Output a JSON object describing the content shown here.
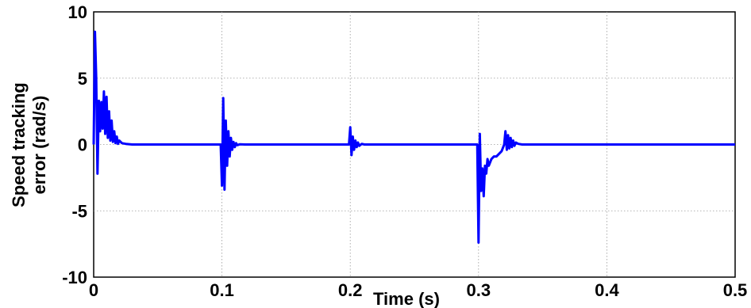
{
  "chart_data": {
    "type": "line",
    "xlabel": "Time (s)",
    "ylabel_lines": [
      "Speed tracking",
      "error (rad/s)"
    ],
    "xlim": [
      0,
      0.5
    ],
    "ylim": [
      -10,
      10
    ],
    "xticks": [
      0,
      0.1,
      0.2,
      0.3,
      0.4,
      0.5
    ],
    "xtick_labels": [
      "0",
      "0.1",
      "0.2",
      "0.3",
      "0.4",
      "0.5"
    ],
    "yticks": [
      -10,
      -5,
      0,
      5,
      10
    ],
    "ytick_labels": [
      "-10",
      "-5",
      "0",
      "5",
      "10"
    ],
    "grid": true,
    "line_color": "#0000ff",
    "series": [
      {
        "x": [
          0,
          0.001,
          0.002,
          0.003,
          0.004,
          0.005,
          0.006,
          0.007,
          0.008,
          0.009,
          0.01,
          0.011,
          0.012,
          0.013,
          0.014,
          0.015,
          0.016,
          0.017,
          0.018,
          0.019,
          0.02,
          0.022,
          0.025,
          0.03,
          0.04,
          0.099,
          0.1,
          0.101,
          0.102,
          0.103,
          0.104,
          0.105,
          0.106,
          0.107,
          0.108,
          0.109,
          0.11,
          0.111,
          0.112,
          0.114,
          0.118,
          0.125,
          0.199,
          0.2,
          0.201,
          0.202,
          0.203,
          0.204,
          0.205,
          0.206,
          0.207,
          0.209,
          0.211,
          0.215,
          0.299,
          0.3,
          0.301,
          0.302,
          0.303,
          0.304,
          0.305,
          0.306,
          0.307,
          0.308,
          0.31,
          0.312,
          0.314,
          0.316,
          0.318,
          0.32,
          0.321,
          0.322,
          0.323,
          0.324,
          0.325,
          0.326,
          0.327,
          0.328,
          0.329,
          0.331,
          0.334,
          0.34,
          0.5
        ],
        "y": [
          0,
          8.5,
          5.0,
          -2.2,
          3.3,
          1.0,
          3.2,
          1.2,
          4.0,
          0.8,
          3.6,
          0.5,
          2.5,
          0.3,
          1.8,
          0.2,
          1.0,
          0.1,
          0.6,
          0.05,
          0.3,
          0.1,
          0.05,
          0,
          0,
          0,
          -3.1,
          3.5,
          -3.4,
          1.8,
          -1.6,
          1.0,
          -0.9,
          0.5,
          -0.4,
          0.2,
          -0.2,
          0.1,
          -0.05,
          0.02,
          0,
          0,
          0,
          1.3,
          -0.8,
          0.6,
          -0.4,
          0.3,
          -0.2,
          0.15,
          -0.1,
          0.05,
          0,
          0,
          0,
          -7.4,
          0.8,
          -3.5,
          -1.8,
          -3.9,
          -1.6,
          -2.2,
          -1.1,
          -1.6,
          -1.1,
          -0.9,
          -0.9,
          -0.7,
          -0.5,
          0.0,
          1.0,
          -0.4,
          0.7,
          -0.3,
          0.5,
          -0.2,
          0.3,
          -0.1,
          0.15,
          0.05,
          0,
          0,
          0
        ]
      }
    ]
  }
}
